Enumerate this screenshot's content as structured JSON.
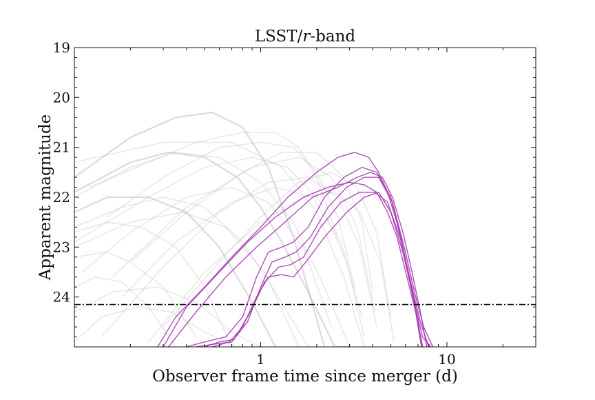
{
  "chart_data": {
    "type": "line",
    "title_main": "LSST/",
    "title_italic": "r",
    "title_tail": "-band",
    "xlabel": "Observer frame time since merger (d)",
    "ylabel": "Apparent magnitude",
    "x_scale": "log",
    "xlim": [
      0.1,
      30
    ],
    "ylim": [
      25.0,
      19.0
    ],
    "y_inverted": true,
    "x_ticks": [
      1,
      10
    ],
    "x_tick_labels": [
      "1",
      "10"
    ],
    "y_ticks": [
      19,
      20,
      21,
      22,
      23,
      24
    ],
    "y_tick_labels": [
      "19",
      "20",
      "21",
      "22",
      "23",
      "24"
    ],
    "grid": false,
    "limiting_magnitude": 24.15,
    "background_color": "#bdbdbd",
    "highlight_color": "#a63ab0",
    "limit_line_color": "#111111",
    "background_series": [
      {
        "x": [
          0.1,
          0.2,
          0.35,
          0.55,
          0.8,
          1.1,
          1.5,
          2.2
        ],
        "y": [
          21.6,
          20.8,
          20.4,
          20.3,
          20.6,
          21.4,
          22.8,
          25.0
        ]
      },
      {
        "x": [
          0.1,
          0.2,
          0.32,
          0.5,
          0.75,
          1.0,
          1.3,
          1.8,
          2.5,
          3.0
        ],
        "y": [
          21.9,
          21.3,
          21.1,
          21.2,
          21.6,
          22.2,
          22.9,
          23.9,
          25.0,
          25.0
        ]
      },
      {
        "x": [
          0.1,
          0.15,
          0.25,
          0.4,
          0.6,
          0.9,
          1.2
        ],
        "y": [
          22.3,
          22.0,
          22.0,
          22.3,
          23.0,
          24.1,
          25.0
        ]
      },
      {
        "x": [
          0.1,
          0.15,
          0.23,
          0.35,
          0.5,
          0.7
        ],
        "y": [
          22.7,
          22.5,
          22.6,
          23.0,
          23.8,
          25.0
        ]
      },
      {
        "x": [
          0.1,
          0.15,
          0.2,
          0.3,
          0.45
        ],
        "y": [
          23.2,
          23.1,
          23.3,
          23.8,
          24.8
        ]
      },
      {
        "x": [
          0.1,
          0.13,
          0.18,
          0.25,
          0.35
        ],
        "y": [
          23.8,
          23.6,
          23.7,
          24.2,
          25.0
        ]
      },
      {
        "x": [
          0.12,
          0.25,
          0.45,
          0.8,
          1.2,
          1.6,
          2.0,
          2.6
        ],
        "y": [
          21.8,
          21.3,
          20.9,
          20.7,
          20.7,
          21.0,
          21.6,
          22.8
        ]
      },
      {
        "x": [
          0.15,
          0.3,
          0.6,
          1.0,
          1.5,
          2.0,
          2.6,
          3.2
        ],
        "y": [
          22.4,
          21.6,
          21.0,
          20.9,
          21.0,
          21.5,
          22.4,
          23.8
        ]
      },
      {
        "x": [
          0.2,
          0.4,
          0.8,
          1.3,
          2.0,
          2.8,
          3.5,
          4.0
        ],
        "y": [
          23.3,
          22.3,
          21.5,
          21.1,
          21.1,
          21.6,
          22.5,
          23.9
        ]
      },
      {
        "x": [
          0.3,
          0.6,
          1.0,
          1.6,
          2.4,
          3.3,
          4.2,
          5.0
        ],
        "y": [
          24.6,
          23.3,
          22.4,
          21.7,
          21.5,
          21.8,
          22.7,
          24.4
        ]
      },
      {
        "x": [
          0.1,
          0.2,
          0.35,
          0.6,
          1.0,
          1.5,
          2.2,
          3.0
        ],
        "y": [
          22.0,
          21.4,
          21.1,
          21.2,
          21.7,
          22.5,
          23.8,
          25.0
        ]
      },
      {
        "x": [
          0.1,
          0.18,
          0.3,
          0.5,
          0.8,
          1.2,
          1.8
        ],
        "y": [
          22.6,
          22.2,
          22.0,
          22.2,
          22.9,
          23.9,
          25.0
        ]
      },
      {
        "x": [
          0.11,
          0.2,
          0.4,
          0.7,
          1.1,
          1.7,
          2.4
        ],
        "y": [
          23.5,
          22.7,
          22.0,
          21.8,
          22.1,
          23.0,
          24.6
        ]
      },
      {
        "x": [
          0.1,
          0.25,
          0.5,
          0.9,
          1.4,
          2.1,
          2.9,
          3.6
        ],
        "y": [
          22.9,
          22.0,
          21.4,
          21.2,
          21.4,
          22.1,
          23.3,
          24.8
        ]
      },
      {
        "x": [
          0.14,
          0.3,
          0.6,
          1.1,
          1.8,
          2.6,
          3.4,
          4.2
        ],
        "y": [
          24.8,
          23.4,
          22.3,
          21.7,
          21.6,
          22.0,
          23.0,
          24.6
        ]
      },
      {
        "x": [
          0.1,
          0.16,
          0.28,
          0.45,
          0.7,
          1.0
        ],
        "y": [
          24.3,
          23.9,
          23.8,
          24.1,
          24.7,
          25.0
        ]
      },
      {
        "x": [
          0.18,
          0.35,
          0.7,
          1.2,
          1.9,
          2.7,
          3.5
        ],
        "y": [
          24.0,
          22.9,
          22.1,
          21.8,
          22.0,
          22.9,
          24.4
        ]
      },
      {
        "x": [
          0.25,
          0.5,
          1.0,
          1.7,
          2.5,
          3.4,
          4.4,
          5.2
        ],
        "y": [
          24.9,
          23.5,
          22.5,
          22.0,
          21.9,
          22.3,
          23.3,
          24.9
        ]
      },
      {
        "x": [
          0.1,
          0.2,
          0.38,
          0.65,
          1.05,
          1.6
        ],
        "y": [
          23.0,
          22.5,
          22.3,
          22.6,
          23.5,
          25.0
        ]
      },
      {
        "x": [
          0.1,
          0.3,
          0.7,
          1.3,
          2.0,
          2.8,
          3.6
        ],
        "y": [
          21.3,
          20.9,
          20.9,
          21.4,
          22.3,
          23.6,
          25.0
        ]
      },
      {
        "x": [
          0.16,
          0.4,
          0.9,
          1.6,
          2.4,
          3.3,
          4.1
        ],
        "y": [
          23.6,
          22.2,
          21.4,
          21.2,
          21.6,
          22.6,
          24.3
        ]
      },
      {
        "x": [
          0.1,
          0.14,
          0.22,
          0.33,
          0.5,
          0.75,
          1.05
        ],
        "y": [
          24.9,
          24.4,
          24.2,
          24.3,
          24.7,
          25.0,
          25.0
        ]
      }
    ],
    "highlighted_series": [
      {
        "x": [
          0.28,
          0.35,
          0.5,
          0.7,
          1.0,
          1.4,
          2.0,
          2.6,
          3.2,
          3.8,
          4.3,
          4.8,
          5.5,
          6.2,
          6.8,
          7.3
        ],
        "y": [
          25.0,
          24.4,
          23.8,
          23.2,
          22.6,
          22.0,
          21.5,
          21.2,
          21.1,
          21.2,
          21.5,
          21.9,
          22.6,
          23.5,
          24.3,
          25.0
        ]
      },
      {
        "x": [
          0.3,
          0.4,
          0.6,
          0.85,
          1.2,
          1.7,
          2.3,
          3.0,
          3.6,
          4.2,
          4.8,
          5.4,
          6.1,
          6.8,
          7.4
        ],
        "y": [
          25.0,
          24.2,
          23.5,
          22.9,
          22.4,
          22.0,
          21.8,
          21.7,
          21.75,
          21.9,
          22.3,
          22.8,
          23.6,
          24.3,
          25.0
        ]
      },
      {
        "x": [
          0.32,
          0.45,
          0.65,
          0.95,
          1.35,
          1.9,
          2.6,
          3.3,
          3.9,
          4.5,
          5.1,
          5.8,
          6.5,
          7.2,
          7.8
        ],
        "y": [
          25.0,
          24.3,
          23.6,
          23.0,
          22.5,
          22.0,
          21.8,
          21.6,
          21.5,
          21.6,
          22.0,
          22.7,
          23.5,
          24.3,
          25.0
        ]
      },
      {
        "x": [
          0.4,
          0.5,
          0.65,
          0.8,
          0.95,
          1.1,
          1.3,
          1.5,
          1.8,
          2.2,
          2.8,
          3.5,
          4.2,
          5.0,
          5.8,
          6.6,
          7.4,
          8.2
        ],
        "y": [
          25.0,
          24.9,
          24.8,
          24.4,
          23.6,
          23.1,
          23.0,
          22.9,
          22.6,
          22.0,
          21.6,
          21.4,
          21.5,
          22.0,
          23.0,
          24.0,
          24.8,
          25.0
        ]
      },
      {
        "x": [
          0.45,
          0.55,
          0.7,
          0.85,
          1.0,
          1.15,
          1.35,
          1.55,
          1.85,
          2.3,
          2.9,
          3.6,
          4.3,
          5.1,
          5.9,
          6.7,
          7.5,
          8.4
        ],
        "y": [
          25.0,
          24.95,
          24.9,
          24.5,
          23.8,
          23.3,
          23.2,
          23.1,
          22.8,
          22.2,
          21.8,
          21.6,
          21.6,
          22.1,
          23.0,
          23.9,
          24.6,
          25.0
        ]
      },
      {
        "x": [
          0.5,
          0.6,
          0.72,
          0.88,
          1.05,
          1.25,
          1.45,
          1.7,
          2.1,
          2.7,
          3.4,
          4.1,
          4.8,
          5.6,
          6.4,
          7.2,
          8.0
        ],
        "y": [
          25.0,
          24.9,
          24.85,
          24.3,
          23.7,
          23.4,
          23.35,
          23.2,
          22.6,
          22.1,
          21.9,
          21.9,
          22.1,
          22.8,
          23.7,
          24.5,
          25.0
        ]
      },
      {
        "x": [
          0.55,
          0.68,
          0.8,
          0.95,
          1.1,
          1.3,
          1.5,
          1.75,
          2.2,
          2.9,
          3.6,
          4.3,
          5.0,
          5.8,
          6.6,
          7.4
        ],
        "y": [
          25.0,
          24.9,
          24.6,
          24.0,
          23.6,
          23.55,
          23.6,
          23.3,
          22.8,
          22.3,
          22.0,
          21.9,
          22.3,
          23.1,
          24.0,
          25.0
        ]
      }
    ]
  }
}
